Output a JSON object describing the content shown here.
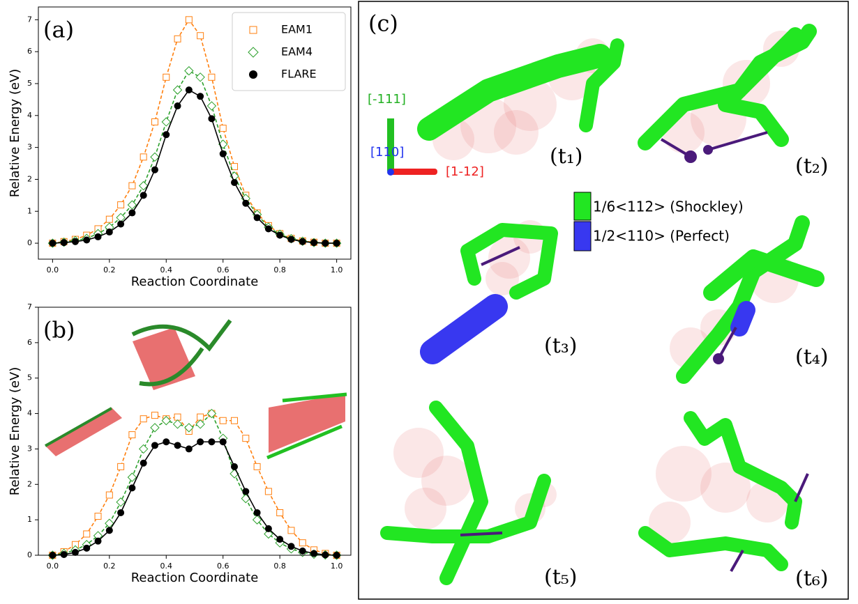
{
  "chart_data": [
    {
      "type": "line",
      "panel_label": "(a)",
      "xlabel": "Reaction Coordinate",
      "ylabel": "Relative Energy (eV)",
      "x": [
        0,
        0.04,
        0.08,
        0.12,
        0.16,
        0.2,
        0.24,
        0.28,
        0.32,
        0.36,
        0.4,
        0.44,
        0.48,
        0.52,
        0.56,
        0.6,
        0.64,
        0.68,
        0.72,
        0.76,
        0.8,
        0.84,
        0.88,
        0.92,
        0.96,
        1.0
      ],
      "series": [
        {
          "name": "EAM1",
          "color": "#ff7f0e",
          "marker": "square",
          "dashed": true,
          "values": [
            0,
            0.05,
            0.12,
            0.25,
            0.45,
            0.75,
            1.2,
            1.8,
            2.7,
            3.8,
            5.2,
            6.4,
            7.0,
            6.5,
            5.2,
            3.6,
            2.4,
            1.5,
            0.95,
            0.55,
            0.3,
            0.15,
            0.07,
            0.03,
            0,
            0
          ]
        },
        {
          "name": "EAM4",
          "color": "#2ca02c",
          "marker": "diamond",
          "dashed": true,
          "values": [
            0,
            0.03,
            0.08,
            0.15,
            0.3,
            0.5,
            0.8,
            1.2,
            1.8,
            2.7,
            3.8,
            4.8,
            5.4,
            5.2,
            4.3,
            3.1,
            2.1,
            1.4,
            0.9,
            0.5,
            0.28,
            0.14,
            0.06,
            0.02,
            0,
            0
          ]
        },
        {
          "name": "FLARE",
          "color": "#000000",
          "marker": "circle",
          "dashed": false,
          "values": [
            0,
            0.02,
            0.05,
            0.1,
            0.2,
            0.35,
            0.6,
            0.95,
            1.5,
            2.3,
            3.4,
            4.3,
            4.8,
            4.6,
            3.9,
            2.8,
            1.9,
            1.25,
            0.8,
            0.45,
            0.25,
            0.12,
            0.05,
            0.02,
            0,
            0
          ]
        }
      ],
      "xlim": [
        -0.05,
        1.05
      ],
      "ylim": [
        -0.5,
        7.4
      ],
      "xticks": [
        {
          "value": 0,
          "label": "0.0"
        },
        0.2,
        0.4,
        0.6,
        0.8,
        {
          "value": 1,
          "label": "1.0"
        }
      ],
      "yticks": [
        0,
        1,
        2,
        3,
        4,
        5,
        6,
        7
      ],
      "legend": "upper right"
    },
    {
      "type": "line",
      "panel_label": "(b)",
      "xlabel": "Reaction Coordinate",
      "ylabel": "Relative Energy (eV)",
      "x": [
        0,
        0.04,
        0.08,
        0.12,
        0.16,
        0.2,
        0.24,
        0.28,
        0.32,
        0.36,
        0.4,
        0.44,
        0.48,
        0.52,
        0.56,
        0.6,
        0.64,
        0.68,
        0.72,
        0.76,
        0.8,
        0.84,
        0.88,
        0.92,
        0.96,
        1.0
      ],
      "series": [
        {
          "name": "EAM1",
          "color": "#ff7f0e",
          "marker": "square",
          "dashed": true,
          "values": [
            0,
            0.1,
            0.3,
            0.6,
            1.1,
            1.7,
            2.5,
            3.4,
            3.85,
            3.95,
            3.85,
            3.9,
            3.5,
            3.9,
            4.0,
            3.8,
            3.8,
            3.3,
            2.5,
            1.8,
            1.2,
            0.7,
            0.35,
            0.15,
            0.05,
            0
          ]
        },
        {
          "name": "EAM4",
          "color": "#2ca02c",
          "marker": "diamond",
          "dashed": true,
          "values": [
            0,
            0.05,
            0.15,
            0.3,
            0.55,
            0.9,
            1.5,
            2.2,
            3.0,
            3.6,
            3.8,
            3.7,
            3.6,
            3.7,
            4.0,
            3.3,
            2.3,
            1.6,
            1.0,
            0.6,
            0.35,
            0.18,
            0.08,
            0.03,
            0.01,
            0
          ]
        },
        {
          "name": "FLARE",
          "color": "#000000",
          "marker": "circle",
          "dashed": false,
          "values": [
            0,
            0.02,
            0.08,
            0.2,
            0.4,
            0.7,
            1.2,
            1.9,
            2.6,
            3.1,
            3.2,
            3.1,
            3.0,
            3.2,
            3.2,
            3.2,
            2.5,
            1.8,
            1.2,
            0.75,
            0.45,
            0.25,
            0.12,
            0.05,
            0.01,
            0
          ]
        }
      ],
      "xlim": [
        -0.05,
        1.05
      ],
      "ylim": [
        0,
        7
      ],
      "xticks": [
        {
          "value": 0,
          "label": "0.0"
        },
        0.2,
        0.4,
        0.6,
        0.8,
        {
          "value": 1,
          "label": "1.0"
        }
      ],
      "yticks": [
        0,
        1,
        2,
        3,
        4,
        5,
        6,
        7
      ]
    }
  ],
  "panel_c": {
    "label": "(c)",
    "axes": [
      "[-111]",
      "[110]",
      "[1-12]"
    ],
    "legend": [
      "1/6<112> (Shockley)",
      "1/2<110> (Perfect)"
    ],
    "frames": [
      "(t₁)",
      "(t₂)",
      "(t₃)",
      "(t₄)",
      "(t₅)",
      "(t₆)"
    ]
  }
}
